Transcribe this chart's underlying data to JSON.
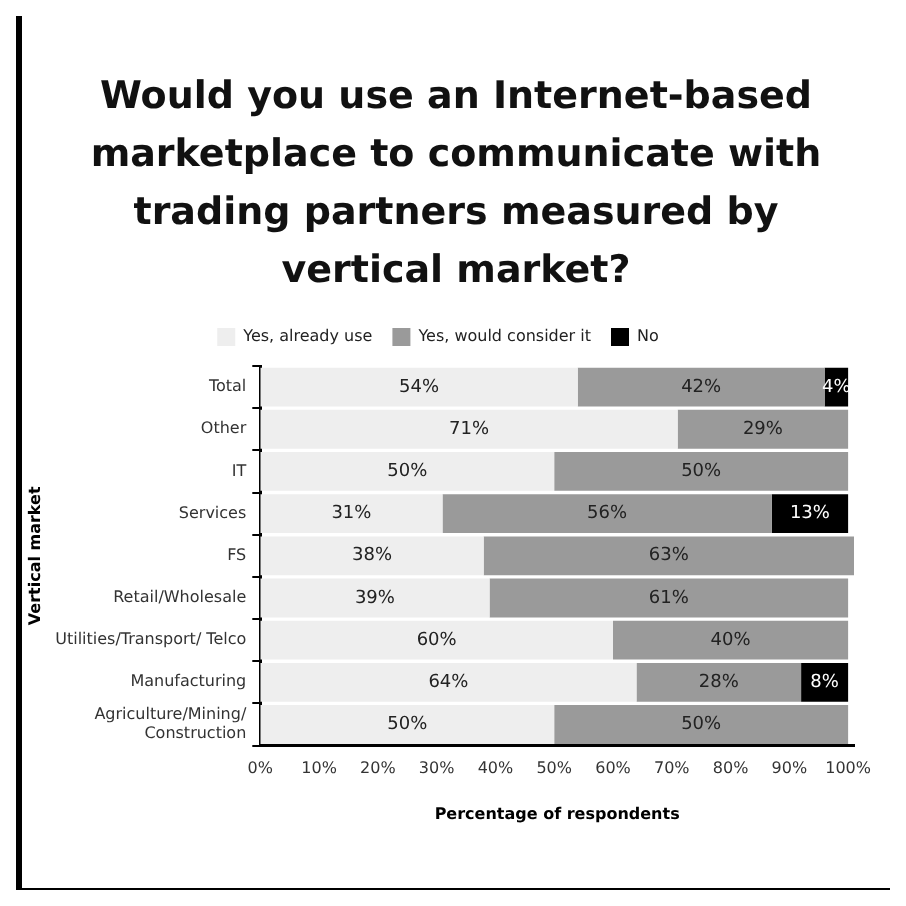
{
  "chart_data": {
    "type": "bar",
    "orientation": "horizontal",
    "stacked": true,
    "title": "Would you use an Internet-based marketplace to communicate with trading partners measured by vertical market?",
    "xlabel": "Percentage of respondents",
    "ylabel": "Vertical market",
    "categories": [
      "Total",
      "Other",
      "IT",
      "Services",
      "FS",
      "Retail/Wholesale",
      "Utilities/Transport/ Telco",
      "Manufacturing",
      "Agriculture/Mining/Construction"
    ],
    "series": [
      {
        "name": "Yes, already use",
        "color": "#eeeeee",
        "values": [
          54,
          71,
          50,
          31,
          38,
          39,
          60,
          64,
          50
        ],
        "value_labels": [
          "54%",
          "71%",
          "50%",
          "31%",
          "38%",
          "39%",
          "60%",
          "64%",
          "50%"
        ]
      },
      {
        "name": "Yes, would consider it",
        "color": "#9a9a9a",
        "values": [
          42,
          29,
          50,
          56,
          63,
          61,
          40,
          28,
          50
        ],
        "value_labels": [
          "42%",
          "29%",
          "50%",
          "56%",
          "63%",
          "61%",
          "40%",
          "28%",
          "50%"
        ]
      },
      {
        "name": "No",
        "color": "#000000",
        "values": [
          4,
          null,
          null,
          13,
          null,
          null,
          null,
          8,
          null
        ],
        "value_labels": [
          "4%",
          null,
          null,
          "13%",
          null,
          null,
          null,
          "8%",
          null
        ]
      }
    ],
    "xlim": [
      0,
      101
    ],
    "xticks": [
      {
        "value": 0,
        "label": "0%"
      },
      {
        "value": 10,
        "label": "10%"
      },
      {
        "value": 20,
        "label": "20%"
      },
      {
        "value": 30,
        "label": "30%"
      },
      {
        "value": 40,
        "label": "40%"
      },
      {
        "value": 50,
        "label": "50%"
      },
      {
        "value": 60,
        "label": "60%"
      },
      {
        "value": 70,
        "label": "70%"
      },
      {
        "value": 80,
        "label": "80%"
      },
      {
        "value": 90,
        "label": "90%"
      },
      {
        "value": 100,
        "label": "100%"
      }
    ],
    "grid": false,
    "legend": "top"
  }
}
